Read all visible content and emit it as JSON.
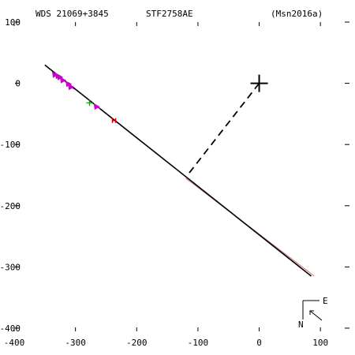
{
  "header": {
    "left": "WDS 21069+3845",
    "center": "STF2758AE",
    "right": "(Msn2016a)"
  },
  "compass": {
    "east_label": "E",
    "north_label": "N"
  },
  "chart_data": {
    "type": "scatter",
    "title": "",
    "xlim": [
      -400,
      150
    ],
    "ylim": [
      -440,
      100
    ],
    "x_ticks": [
      -400,
      -300,
      -200,
      -100,
      0,
      100
    ],
    "y_ticks": [
      100,
      0,
      -100,
      -200,
      -300,
      -400
    ],
    "grid": false,
    "primary_star": {
      "x": 0,
      "y": 0,
      "marker": "plus",
      "color": "#000000"
    },
    "orbit_line": {
      "color": "#000000",
      "points": [
        {
          "x": -350,
          "y": 30
        },
        {
          "x": 85,
          "y": -315
        }
      ]
    },
    "fit_line": {
      "color": "#d07070",
      "points": [
        {
          "x": -120,
          "y": -155
        },
        {
          "x": 90,
          "y": -315
        }
      ]
    },
    "periastron_line": {
      "color": "#000000",
      "dashed": true,
      "points": [
        {
          "x": 0,
          "y": 0
        },
        {
          "x": -117,
          "y": -150
        }
      ]
    },
    "series": [
      {
        "marker": "triangle",
        "color": "#cc00cc",
        "points": [
          {
            "x": -333,
            "y": 14
          },
          {
            "x": -328,
            "y": 12
          },
          {
            "x": -325,
            "y": 10
          },
          {
            "x": -320,
            "y": 5
          },
          {
            "x": -311,
            "y": -1
          },
          {
            "x": -307,
            "y": -6
          },
          {
            "x": -265,
            "y": -38
          }
        ]
      },
      {
        "marker": "plus",
        "color": "#00aa00",
        "points": [
          {
            "x": -277,
            "y": -32
          }
        ]
      },
      {
        "marker": "bar",
        "color": "#cc0000",
        "points": [
          {
            "x": -237,
            "y": -61
          }
        ]
      }
    ]
  }
}
